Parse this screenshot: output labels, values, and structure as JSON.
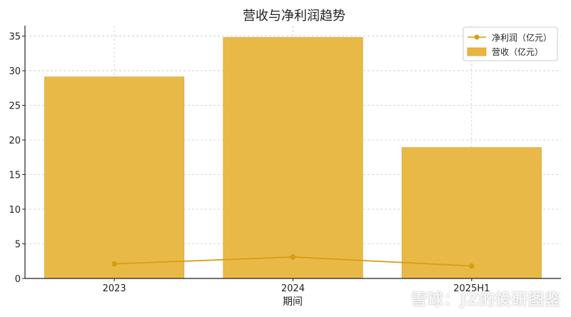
{
  "chart_data": {
    "type": "bar",
    "title": "营收与净利润趋势",
    "xlabel": "期间",
    "ylabel": "",
    "categories": [
      "2023",
      "2024",
      "2025H1"
    ],
    "ylim": [
      0,
      36.5
    ],
    "yticks": [
      0,
      5,
      10,
      15,
      20,
      25,
      30,
      35
    ],
    "grid": true,
    "legend_position": "top-right",
    "series": [
      {
        "name": "营收（亿元）",
        "kind": "bar",
        "values": [
          29.1,
          34.8,
          18.9
        ],
        "color": "#E8B53E"
      },
      {
        "name": "净利润（亿元）",
        "kind": "line",
        "values": [
          2.1,
          3.1,
          1.8
        ],
        "color": "#D69E12"
      }
    ]
  },
  "watermark": {
    "text": "雪球：JZ的投研图鉴",
    "icon": "xueqiu-logo-icon"
  }
}
